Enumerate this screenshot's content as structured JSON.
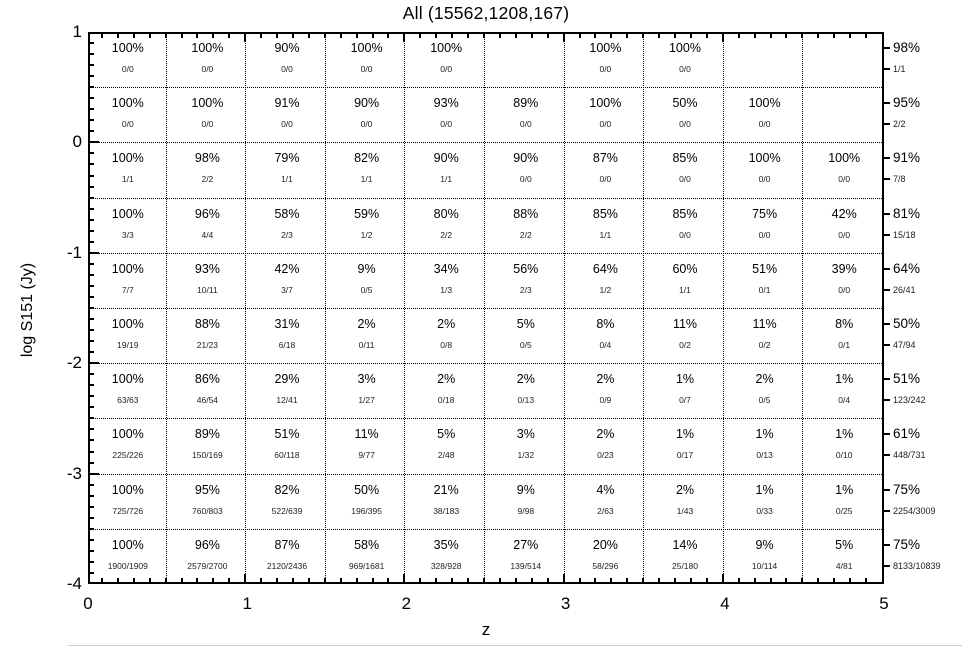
{
  "title": "All (15562,1208,167)",
  "colors": {
    "foreground": "#000000",
    "background": "#ffffff",
    "separator": "#cfcfcf"
  },
  "chart_data": {
    "type": "table",
    "title": "All (15562,1208,167)",
    "xlabel": "z",
    "ylabel": "log S151 (Jy)",
    "xlim": [
      0,
      5
    ],
    "ylim": [
      -4,
      1
    ],
    "x_ticks": [
      "0",
      "1",
      "2",
      "3",
      "4",
      "5"
    ],
    "y_ticks": [
      "1",
      "0",
      "-1",
      "-2",
      "-3",
      "-4"
    ],
    "grid": {
      "style": "dotted",
      "cols": 10,
      "rows": 10,
      "x_bin": 0.5,
      "y_bin": 0.5
    },
    "legend": "each cell: completeness percent (top) and detected/total fraction (bottom); right column: row totals",
    "rows": [
      {
        "cells": [
          [
            "100%",
            "0/0"
          ],
          [
            "100%",
            "0/0"
          ],
          [
            "90%",
            "0/0"
          ],
          [
            "100%",
            "0/0"
          ],
          [
            "100%",
            "0/0"
          ],
          null,
          [
            "100%",
            "0/0"
          ],
          [
            "100%",
            "0/0"
          ],
          null,
          null
        ],
        "total": [
          "98%",
          "1/1"
        ]
      },
      {
        "cells": [
          [
            "100%",
            "0/0"
          ],
          [
            "100%",
            "0/0"
          ],
          [
            "91%",
            "0/0"
          ],
          [
            "90%",
            "0/0"
          ],
          [
            "93%",
            "0/0"
          ],
          [
            "89%",
            "0/0"
          ],
          [
            "100%",
            "0/0"
          ],
          [
            "50%",
            "0/0"
          ],
          [
            "100%",
            "0/0"
          ],
          null
        ],
        "total": [
          "95%",
          "2/2"
        ]
      },
      {
        "cells": [
          [
            "100%",
            "1/1"
          ],
          [
            "98%",
            "2/2"
          ],
          [
            "79%",
            "1/1"
          ],
          [
            "82%",
            "1/1"
          ],
          [
            "90%",
            "1/1"
          ],
          [
            "90%",
            "0/0"
          ],
          [
            "87%",
            "0/0"
          ],
          [
            "85%",
            "0/0"
          ],
          [
            "100%",
            "0/0"
          ],
          [
            "100%",
            "0/0"
          ]
        ],
        "total": [
          "91%",
          "7/8"
        ]
      },
      {
        "cells": [
          [
            "100%",
            "3/3"
          ],
          [
            "96%",
            "4/4"
          ],
          [
            "58%",
            "2/3"
          ],
          [
            "59%",
            "1/2"
          ],
          [
            "80%",
            "2/2"
          ],
          [
            "88%",
            "2/2"
          ],
          [
            "85%",
            "1/1"
          ],
          [
            "85%",
            "0/0"
          ],
          [
            "75%",
            "0/0"
          ],
          [
            "42%",
            "0/0"
          ]
        ],
        "total": [
          "81%",
          "15/18"
        ]
      },
      {
        "cells": [
          [
            "100%",
            "7/7"
          ],
          [
            "93%",
            "10/11"
          ],
          [
            "42%",
            "3/7"
          ],
          [
            "9%",
            "0/5"
          ],
          [
            "34%",
            "1/3"
          ],
          [
            "56%",
            "2/3"
          ],
          [
            "64%",
            "1/2"
          ],
          [
            "60%",
            "1/1"
          ],
          [
            "51%",
            "0/1"
          ],
          [
            "39%",
            "0/0"
          ]
        ],
        "total": [
          "64%",
          "26/41"
        ]
      },
      {
        "cells": [
          [
            "100%",
            "19/19"
          ],
          [
            "88%",
            "21/23"
          ],
          [
            "31%",
            "6/18"
          ],
          [
            "2%",
            "0/11"
          ],
          [
            "2%",
            "0/8"
          ],
          [
            "5%",
            "0/5"
          ],
          [
            "8%",
            "0/4"
          ],
          [
            "11%",
            "0/2"
          ],
          [
            "11%",
            "0/2"
          ],
          [
            "8%",
            "0/1"
          ]
        ],
        "total": [
          "50%",
          "47/94"
        ]
      },
      {
        "cells": [
          [
            "100%",
            "63/63"
          ],
          [
            "86%",
            "46/54"
          ],
          [
            "29%",
            "12/41"
          ],
          [
            "3%",
            "1/27"
          ],
          [
            "2%",
            "0/18"
          ],
          [
            "2%",
            "0/13"
          ],
          [
            "2%",
            "0/9"
          ],
          [
            "1%",
            "0/7"
          ],
          [
            "2%",
            "0/5"
          ],
          [
            "1%",
            "0/4"
          ]
        ],
        "total": [
          "51%",
          "123/242"
        ]
      },
      {
        "cells": [
          [
            "100%",
            "225/226"
          ],
          [
            "89%",
            "150/169"
          ],
          [
            "51%",
            "60/118"
          ],
          [
            "11%",
            "9/77"
          ],
          [
            "5%",
            "2/48"
          ],
          [
            "3%",
            "1/32"
          ],
          [
            "2%",
            "0/23"
          ],
          [
            "1%",
            "0/17"
          ],
          [
            "1%",
            "0/13"
          ],
          [
            "1%",
            "0/10"
          ]
        ],
        "total": [
          "61%",
          "448/731"
        ]
      },
      {
        "cells": [
          [
            "100%",
            "725/726"
          ],
          [
            "95%",
            "760/803"
          ],
          [
            "82%",
            "522/639"
          ],
          [
            "50%",
            "196/395"
          ],
          [
            "21%",
            "38/183"
          ],
          [
            "9%",
            "9/98"
          ],
          [
            "4%",
            "2/63"
          ],
          [
            "2%",
            "1/43"
          ],
          [
            "1%",
            "0/33"
          ],
          [
            "1%",
            "0/25"
          ]
        ],
        "total": [
          "75%",
          "2254/3009"
        ]
      },
      {
        "cells": [
          [
            "100%",
            "1900/1909"
          ],
          [
            "96%",
            "2579/2700"
          ],
          [
            "87%",
            "2120/2436"
          ],
          [
            "58%",
            "969/1681"
          ],
          [
            "35%",
            "328/928"
          ],
          [
            "27%",
            "139/514"
          ],
          [
            "20%",
            "58/296"
          ],
          [
            "14%",
            "25/180"
          ],
          [
            "9%",
            "10/114"
          ],
          [
            "5%",
            "4/81"
          ]
        ],
        "total": [
          "75%",
          "8133/10839"
        ]
      }
    ]
  }
}
